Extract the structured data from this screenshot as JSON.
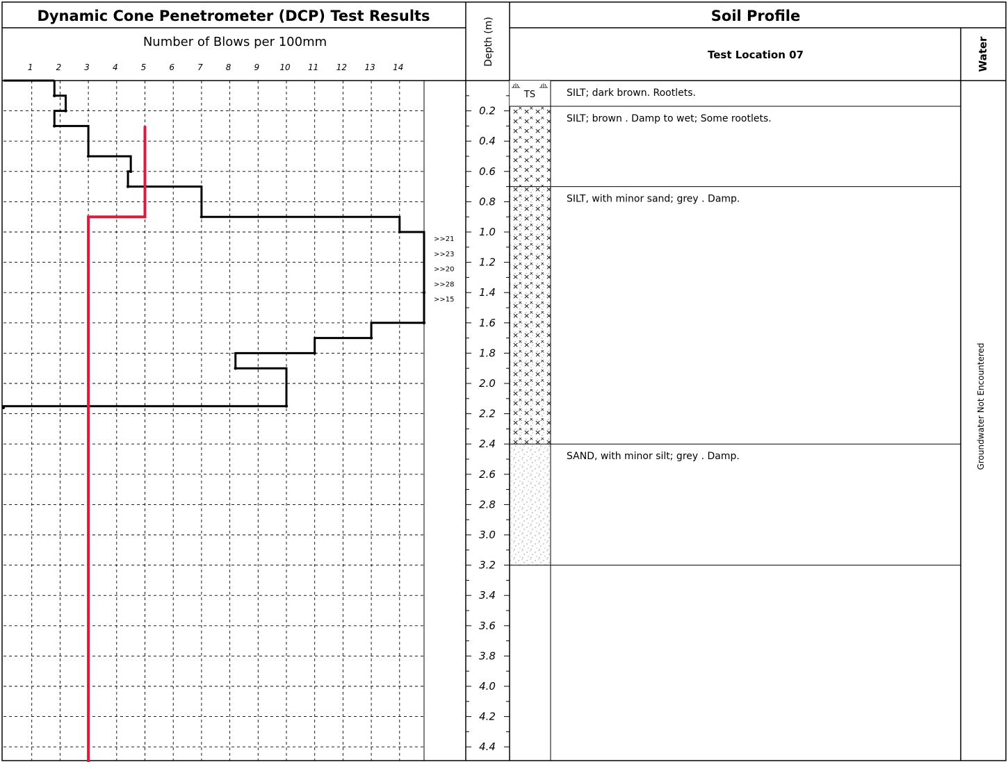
{
  "header": {
    "dcp_title": "Dynamic Cone Penetrometer (DCP) Test Results",
    "depth_col_label": "Depth (m)",
    "profile_title": "Soil Profile",
    "location_label": "Test Location 07",
    "water_label": "Water"
  },
  "chart_data": {
    "type": "line",
    "xlabel": "Number of Blows per 100mm",
    "x_ticks": [
      "1",
      "2",
      "3",
      "4",
      "5",
      "6",
      "7",
      "8",
      "9",
      "10",
      "11",
      "12",
      "13",
      "14"
    ],
    "xlim": [
      0,
      15
    ],
    "ylabel": "Depth (m)",
    "y_ticks": [
      "0.2",
      "0.4",
      "0.6",
      "0.8",
      "1.0",
      "1.2",
      "1.4",
      "1.6",
      "1.8",
      "2.0",
      "2.2",
      "2.4",
      "2.6",
      "2.8",
      "3.0",
      "3.2",
      "3.4",
      "3.6",
      "3.8",
      "4.0",
      "4.2",
      "4.4"
    ],
    "ylim": [
      0,
      4.5
    ],
    "grid": true,
    "series": [
      {
        "color": "#000000",
        "steps": [
          {
            "top": 0.0,
            "bottom": 0.1,
            "blows": 1.8
          },
          {
            "top": 0.1,
            "bottom": 0.2,
            "blows": 2.2
          },
          {
            "top": 0.2,
            "bottom": 0.3,
            "blows": 1.8
          },
          {
            "top": 0.3,
            "bottom": 0.5,
            "blows": 3.0
          },
          {
            "top": 0.5,
            "bottom": 0.6,
            "blows": 4.5
          },
          {
            "top": 0.6,
            "bottom": 0.7,
            "blows": 4.4
          },
          {
            "top": 0.7,
            "bottom": 0.9,
            "blows": 7.0
          },
          {
            "top": 0.9,
            "bottom": 1.0,
            "blows": 14.0
          },
          {
            "top": 1.0,
            "bottom": 1.4,
            "blows": 15.0
          },
          {
            "top": 1.4,
            "bottom": 1.6,
            "blows": 15.0
          },
          {
            "top": 1.6,
            "bottom": 1.7,
            "blows": 13.0
          },
          {
            "top": 1.7,
            "bottom": 1.8,
            "blows": 11.0
          },
          {
            "top": 1.8,
            "bottom": 1.9,
            "blows": 8.2
          },
          {
            "top": 1.9,
            "bottom": 2.15,
            "blows": 10.0
          },
          {
            "top": 2.15,
            "bottom": 2.16,
            "blows": 0.0
          }
        ]
      },
      {
        "color": "#e0183c",
        "steps": [
          {
            "top": 0.3,
            "bottom": 0.9,
            "blows": 5.0
          },
          {
            "top": 0.9,
            "bottom": 4.5,
            "blows": 3.0
          }
        ]
      }
    ],
    "refusal_annotations": [
      {
        "depth": 1.0,
        "text": ">>21"
      },
      {
        "depth": 1.1,
        "text": ">>23"
      },
      {
        "depth": 1.2,
        "text": ">>20"
      },
      {
        "depth": 1.3,
        "text": ">>28"
      },
      {
        "depth": 1.4,
        "text": ">>15"
      }
    ]
  },
  "soil_profile": {
    "layers": [
      {
        "top": 0.0,
        "bottom": 0.17,
        "pattern": "topsoil",
        "symbol": "TS",
        "description": "SILT; dark brown. Rootlets."
      },
      {
        "top": 0.17,
        "bottom": 0.7,
        "pattern": "silt",
        "description": "SILT; brown . Damp to wet; Some rootlets."
      },
      {
        "top": 0.7,
        "bottom": 2.4,
        "pattern": "silt-sand",
        "description": "SILT, with minor sand; grey . Damp."
      },
      {
        "top": 2.4,
        "bottom": 3.2,
        "pattern": "sand",
        "description": "SAND, with minor silt; grey . Damp."
      }
    ],
    "groundwater": "Groundwater Not Encountered"
  }
}
